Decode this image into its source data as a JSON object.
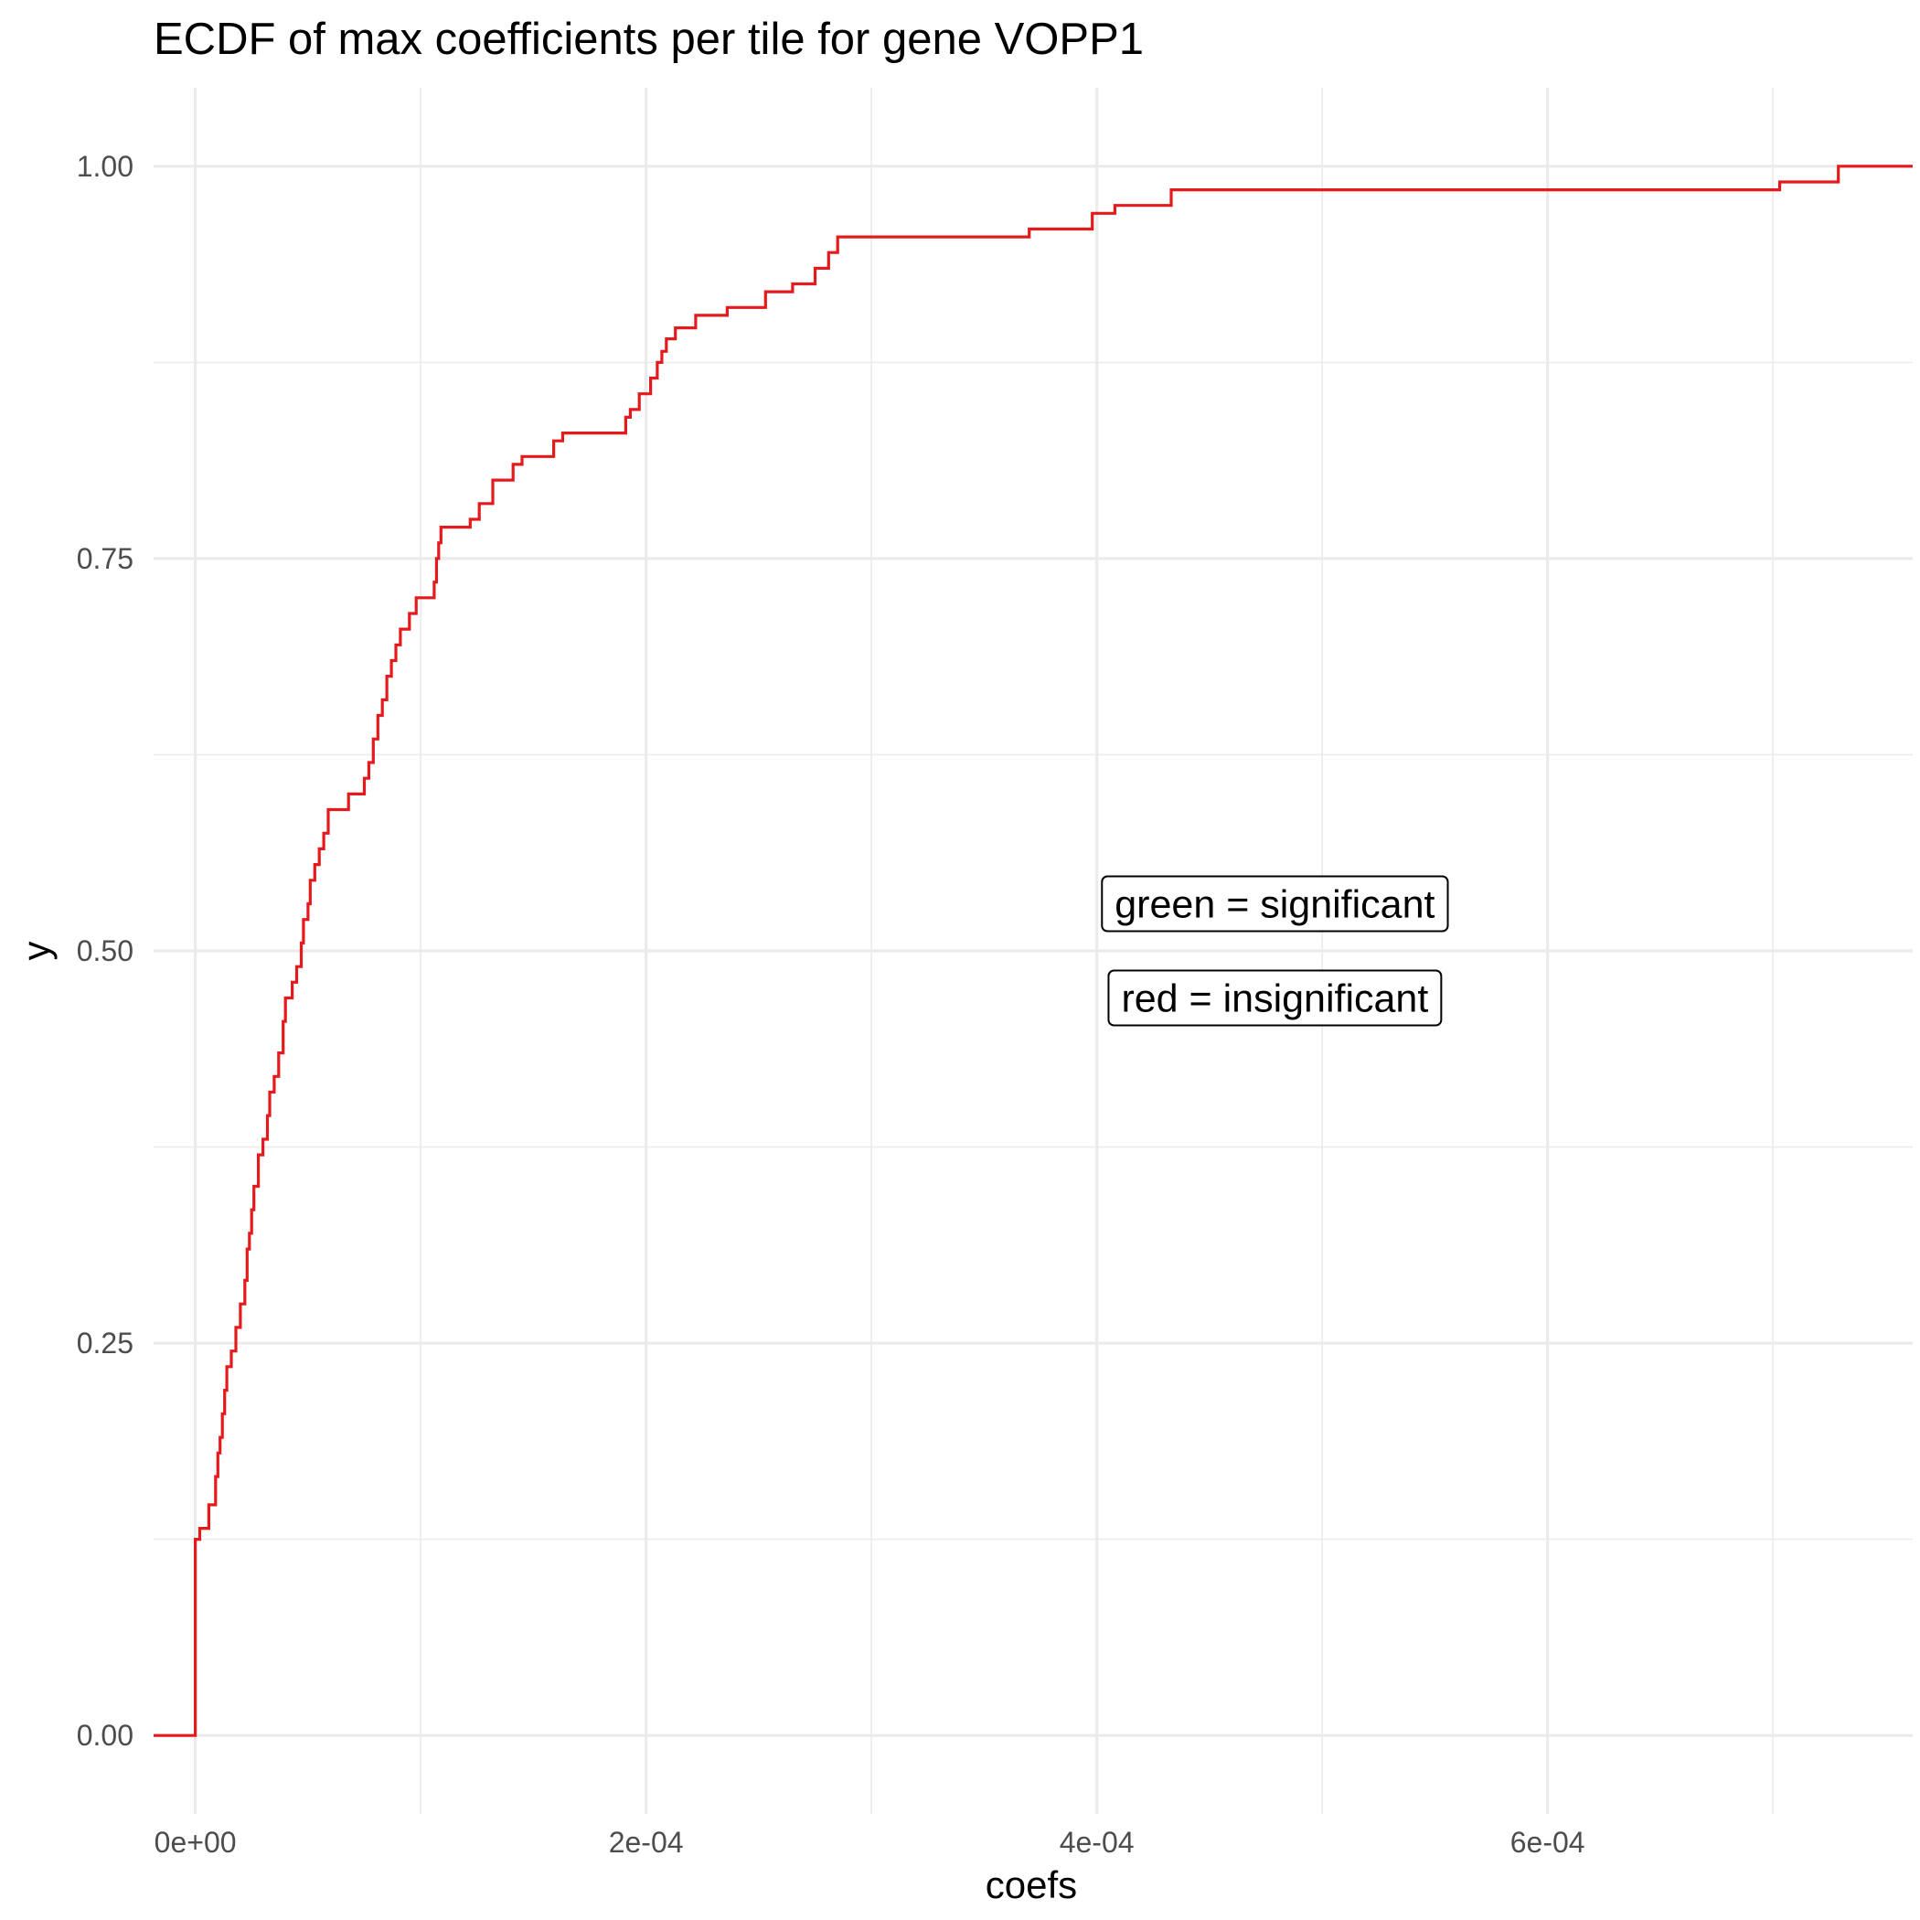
{
  "chart_data": {
    "type": "line",
    "step": true,
    "title": "ECDF of max coefficients per tile for gene VOPP1",
    "xlabel": "coefs",
    "ylabel": "y",
    "xlim": [
      -1.85e-05,
      0.000762
    ],
    "ylim": [
      -0.05,
      1.05
    ],
    "xticks": [
      0,
      0.0002,
      0.0004,
      0.0006
    ],
    "xtick_labels": [
      "0e+00",
      "2e-04",
      "4e-04",
      "6e-04"
    ],
    "xminor": [
      0.0001,
      0.0003,
      0.0005,
      0.0007
    ],
    "yticks": [
      0,
      0.25,
      0.5,
      0.75,
      1.0
    ],
    "ytick_labels": [
      "0.00",
      "0.25",
      "0.50",
      "0.75",
      "1.00"
    ],
    "yminor": [
      0.125,
      0.375,
      0.625,
      0.875
    ],
    "grid": true,
    "line_color": "#e41a1c",
    "series": [
      {
        "points": [
          [
            -1.85e-05,
            0
          ],
          [
            0,
            0
          ],
          [
            0,
            0.125
          ],
          [
            2e-06,
            0.132
          ],
          [
            6e-06,
            0.147
          ],
          [
            9e-06,
            0.165
          ],
          [
            1e-05,
            0.18
          ],
          [
            1.1e-05,
            0.19
          ],
          [
            1.2e-05,
            0.205
          ],
          [
            1.3e-05,
            0.22
          ],
          [
            1.4e-05,
            0.235
          ],
          [
            1.6e-05,
            0.245
          ],
          [
            1.8e-05,
            0.26
          ],
          [
            2e-05,
            0.275
          ],
          [
            2.2e-05,
            0.29
          ],
          [
            2.3e-05,
            0.31
          ],
          [
            2.4e-05,
            0.32
          ],
          [
            2.5e-05,
            0.335
          ],
          [
            2.6e-05,
            0.35
          ],
          [
            2.8e-05,
            0.37
          ],
          [
            3e-05,
            0.38
          ],
          [
            3.2e-05,
            0.395
          ],
          [
            3.3e-05,
            0.41
          ],
          [
            3.5e-05,
            0.42
          ],
          [
            3.7e-05,
            0.435
          ],
          [
            3.9e-05,
            0.455
          ],
          [
            4e-05,
            0.47
          ],
          [
            4.3e-05,
            0.48
          ],
          [
            4.5e-05,
            0.49
          ],
          [
            4.7e-05,
            0.505
          ],
          [
            4.8e-05,
            0.52
          ],
          [
            5e-05,
            0.53
          ],
          [
            5.1e-05,
            0.545
          ],
          [
            5.3e-05,
            0.555
          ],
          [
            5.5e-05,
            0.565
          ],
          [
            5.7e-05,
            0.575
          ],
          [
            5.9e-05,
            0.59
          ],
          [
            6.8e-05,
            0.6
          ],
          [
            7.5e-05,
            0.61
          ],
          [
            7.7e-05,
            0.62
          ],
          [
            7.9e-05,
            0.635
          ],
          [
            8.1e-05,
            0.65
          ],
          [
            8.3e-05,
            0.66
          ],
          [
            8.5e-05,
            0.675
          ],
          [
            8.7e-05,
            0.685
          ],
          [
            8.9e-05,
            0.695
          ],
          [
            9.1e-05,
            0.705
          ],
          [
            9.5e-05,
            0.715
          ],
          [
            9.8e-05,
            0.725
          ],
          [
            0.000106,
            0.735
          ],
          [
            0.000107,
            0.75
          ],
          [
            0.000108,
            0.76
          ],
          [
            0.000109,
            0.77
          ],
          [
            0.000122,
            0.775
          ],
          [
            0.000126,
            0.785
          ],
          [
            0.000132,
            0.8
          ],
          [
            0.000141,
            0.81
          ],
          [
            0.000145,
            0.815
          ],
          [
            0.000159,
            0.825
          ],
          [
            0.000163,
            0.83
          ],
          [
            0.000191,
            0.84
          ],
          [
            0.000193,
            0.845
          ],
          [
            0.000197,
            0.855
          ],
          [
            0.000202,
            0.865
          ],
          [
            0.000205,
            0.875
          ],
          [
            0.000207,
            0.882
          ],
          [
            0.000209,
            0.89
          ],
          [
            0.000213,
            0.897
          ],
          [
            0.000222,
            0.905
          ],
          [
            0.000236,
            0.91
          ],
          [
            0.000253,
            0.92
          ],
          [
            0.000265,
            0.925
          ],
          [
            0.000275,
            0.935
          ],
          [
            0.000281,
            0.945
          ],
          [
            0.000285,
            0.955
          ],
          [
            0.00037,
            0.96
          ],
          [
            0.000398,
            0.97
          ],
          [
            0.000408,
            0.975
          ],
          [
            0.000433,
            0.985
          ],
          [
            0.000703,
            0.99
          ],
          [
            0.000729,
            1.0
          ],
          [
            0.000762,
            1.0
          ]
        ]
      }
    ],
    "annotations": [
      {
        "text": "green = significant",
        "x": 0.000479,
        "y": 0.53
      },
      {
        "text": "red = insignificant",
        "x": 0.000479,
        "y": 0.47
      }
    ]
  }
}
